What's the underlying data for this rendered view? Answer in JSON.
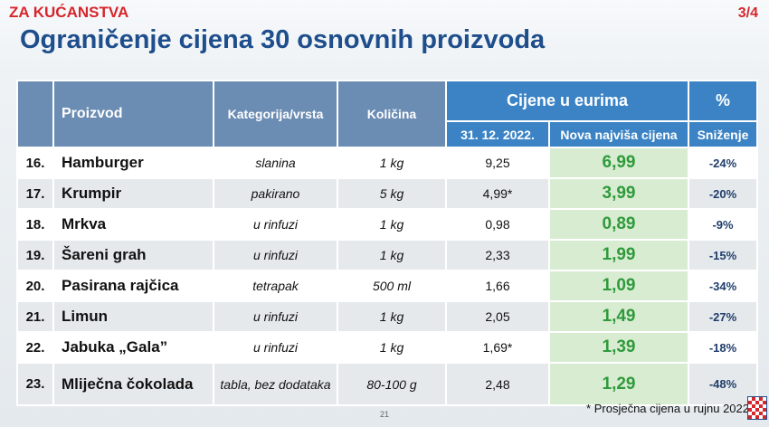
{
  "header": {
    "section": "ZA KUĆANSTVA",
    "page": "3/4",
    "title": "Ograničenje cijena 30 osnovnih proizvoda"
  },
  "table": {
    "columns": [
      "Proizvod",
      "Kategorija/vrsta",
      "Količina"
    ],
    "price_group": "Cijene u eurima",
    "percent_group": "%",
    "subheaders": [
      "31. 12. 2022.",
      "Nova najviša cijena",
      "Sniženje"
    ],
    "rows": [
      [
        "16.",
        "Hamburger",
        "slanina",
        "1 kg",
        "9,25",
        "6,99",
        "-24%"
      ],
      [
        "17.",
        "Krumpir",
        "pakirano",
        "5 kg",
        "4,99*",
        "3,99",
        "-20%"
      ],
      [
        "18.",
        "Mrkva",
        "u rinfuzi",
        "1 kg",
        "0,98",
        "0,89",
        "-9%"
      ],
      [
        "19.",
        "Šareni grah",
        "u rinfuzi",
        "1 kg",
        "2,33",
        "1,99",
        "-15%"
      ],
      [
        "20.",
        "Pasirana rajčica",
        "tetrapak",
        "500 ml",
        "1,66",
        "1,09",
        "-34%"
      ],
      [
        "21.",
        "Limun",
        "u rinfuzi",
        "1 kg",
        "2,05",
        "1,49",
        "-27%"
      ],
      [
        "22.",
        "Jabuka „Gala”",
        "u rinfuzi",
        "1 kg",
        "1,69*",
        "1,39",
        "-18%"
      ],
      [
        "23.",
        "Mliječna čokolada",
        "tabla, bez dodataka",
        "80-100 g",
        "2,48",
        "1,29",
        "-48%"
      ]
    ]
  },
  "footnote": "* Prosječna cijena u rujnu 2022",
  "page_number": "21"
}
